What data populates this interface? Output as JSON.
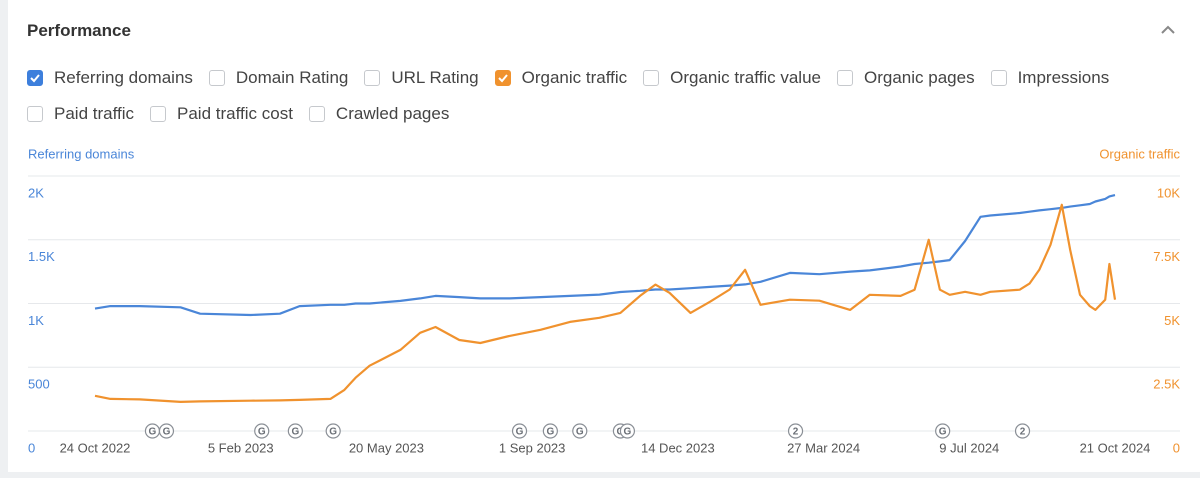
{
  "header": {
    "title": "Performance"
  },
  "metrics": [
    {
      "label": "Referring domains",
      "checked": true,
      "color": "#3d7fdc"
    },
    {
      "label": "Domain Rating",
      "checked": false
    },
    {
      "label": "URL Rating",
      "checked": false
    },
    {
      "label": "Organic traffic",
      "checked": true,
      "color": "#f0922e"
    },
    {
      "label": "Organic traffic value",
      "checked": false
    },
    {
      "label": "Organic pages",
      "checked": false
    },
    {
      "label": "Impressions",
      "checked": false
    },
    {
      "label": "Paid traffic",
      "checked": false
    },
    {
      "label": "Paid traffic cost",
      "checked": false
    },
    {
      "label": "Crawled pages",
      "checked": false
    }
  ],
  "chart_data": {
    "type": "line",
    "grid": true,
    "x": [
      "2022-10-24",
      "2022-11-04",
      "2022-11-25",
      "2022-12-24",
      "2023-01-07",
      "2023-02-12",
      "2023-03-05",
      "2023-03-19",
      "2023-04-10",
      "2023-04-20",
      "2023-04-28",
      "2023-05-08",
      "2023-05-30",
      "2023-06-13",
      "2023-06-24",
      "2023-07-11",
      "2023-07-26",
      "2023-08-16",
      "2023-09-07",
      "2023-09-28",
      "2023-10-19",
      "2023-11-03",
      "2023-11-17",
      "2023-11-28",
      "2023-12-08",
      "2023-12-23",
      "2024-01-06",
      "2024-01-20",
      "2024-01-31",
      "2024-02-11",
      "2024-03-03",
      "2024-03-24",
      "2024-04-15",
      "2024-04-29",
      "2024-05-21",
      "2024-05-31",
      "2024-06-10",
      "2024-06-18",
      "2024-06-25",
      "2024-07-06",
      "2024-07-17",
      "2024-07-24",
      "2024-08-14",
      "2024-08-21",
      "2024-08-28",
      "2024-09-05",
      "2024-09-13",
      "2024-09-19",
      "2024-09-26",
      "2024-10-03",
      "2024-10-07",
      "2024-10-14",
      "2024-10-17",
      "2024-10-21"
    ],
    "xlim": [
      "2022-10-24",
      "2024-10-21"
    ],
    "xticks": [
      {
        "value": "2022-10-24",
        "label": "24 Oct 2022"
      },
      {
        "value": "2023-02-05",
        "label": "5 Feb 2023"
      },
      {
        "value": "2023-05-20",
        "label": "20 May 2023"
      },
      {
        "value": "2023-09-01",
        "label": "1 Sep 2023"
      },
      {
        "value": "2023-12-14",
        "label": "14 Dec 2023"
      },
      {
        "value": "2024-03-27",
        "label": "27 Mar 2024"
      },
      {
        "value": "2024-07-09",
        "label": "9 Jul 2024"
      },
      {
        "value": "2024-10-21",
        "label": "21 Oct 2024"
      }
    ],
    "ylim": [
      0,
      2000
    ],
    "yticks": [
      0,
      500,
      {
        "value": 1000,
        "label": "1K"
      },
      {
        "value": 1500,
        "label": "1.5K"
      },
      {
        "value": 2000,
        "label": "2K"
      }
    ],
    "y2lim": [
      0,
      10000
    ],
    "y2ticks": [
      0,
      {
        "value": 2500,
        "label": "2.5K"
      },
      {
        "value": 5000,
        "label": "5K"
      },
      {
        "value": 7500,
        "label": "7.5K"
      },
      {
        "value": 10000,
        "label": "10K"
      }
    ],
    "series": [
      {
        "name": "Referring domains",
        "color": "#4a86d8",
        "values": [
          960,
          980,
          980,
          970,
          920,
          910,
          920,
          980,
          990,
          990,
          1000,
          1000,
          1020,
          1040,
          1060,
          1050,
          1040,
          1040,
          1050,
          1060,
          1070,
          1090,
          1100,
          1110,
          1110,
          1120,
          1130,
          1140,
          1150,
          1170,
          1240,
          1230,
          1250,
          1260,
          1290,
          1310,
          1320,
          1330,
          1340,
          1490,
          1680,
          1690,
          1710,
          1720,
          1730,
          1740,
          1750,
          1760,
          1770,
          1780,
          1800,
          1820,
          1840,
          1850
        ]
      },
      {
        "name": "Organic traffic",
        "color": "#f0922e",
        "axis": "y2",
        "values": [
          1380,
          1260,
          1240,
          1140,
          1160,
          1190,
          1200,
          1220,
          1260,
          1610,
          2090,
          2560,
          3180,
          3850,
          4080,
          3570,
          3450,
          3730,
          3970,
          4280,
          4440,
          4630,
          5300,
          5740,
          5420,
          4630,
          5070,
          5550,
          6320,
          4950,
          5150,
          5110,
          4750,
          5340,
          5300,
          5540,
          7500,
          5540,
          5340,
          5460,
          5340,
          5460,
          5540,
          5780,
          6320,
          7300,
          8870,
          7100,
          5340,
          4900,
          4750,
          5150,
          6550,
          5150
        ]
      }
    ],
    "annotations": [
      {
        "x": "2022-12-04",
        "label": "G"
      },
      {
        "x": "2022-12-14",
        "label": "G"
      },
      {
        "x": "2023-02-20",
        "label": "G"
      },
      {
        "x": "2023-03-16",
        "label": "G"
      },
      {
        "x": "2023-04-12",
        "label": "G"
      },
      {
        "x": "2023-08-23",
        "label": "G"
      },
      {
        "x": "2023-09-14",
        "label": "G"
      },
      {
        "x": "2023-10-05",
        "label": "G"
      },
      {
        "x": "2023-11-03",
        "label": "G"
      },
      {
        "x": "2023-11-08",
        "label": "G"
      },
      {
        "x": "2024-03-07",
        "label": "2"
      },
      {
        "x": "2024-06-20",
        "label": "G"
      },
      {
        "x": "2024-08-16",
        "label": "2"
      }
    ]
  }
}
